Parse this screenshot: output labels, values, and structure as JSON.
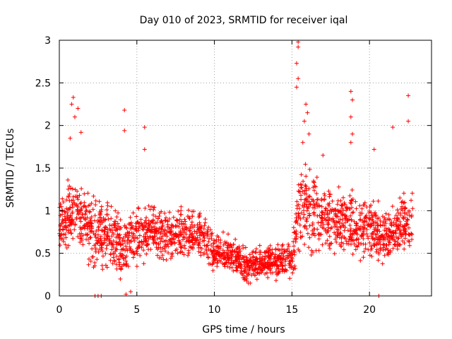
{
  "chart_data": {
    "type": "scatter",
    "title": "Day 010 of 2023, SRMTID for receiver iqal",
    "xlabel": "GPS time / hours",
    "ylabel": "SRMTID / TECUs",
    "xlim": [
      0,
      24
    ],
    "ylim": [
      0,
      3
    ],
    "xticks": [
      0,
      5,
      10,
      15,
      20
    ],
    "yticks": [
      0,
      0.5,
      1,
      1.5,
      2,
      2.5,
      3
    ],
    "grid": true,
    "marker": "+",
    "series": [
      {
        "name": "SRMTID",
        "color": "#ff0000",
        "profile": [
          {
            "t": 0.0,
            "mean": 0.85,
            "spread": 0.45
          },
          {
            "t": 1.0,
            "mean": 1.0,
            "spread": 0.6
          },
          {
            "t": 2.0,
            "mean": 0.75,
            "spread": 0.55
          },
          {
            "t": 3.0,
            "mean": 0.75,
            "spread": 0.55
          },
          {
            "t": 4.0,
            "mean": 0.55,
            "spread": 0.5
          },
          {
            "t": 5.0,
            "mean": 0.7,
            "spread": 0.45
          },
          {
            "t": 6.0,
            "mean": 0.75,
            "spread": 0.4
          },
          {
            "t": 7.0,
            "mean": 0.7,
            "spread": 0.4
          },
          {
            "t": 8.0,
            "mean": 0.7,
            "spread": 0.4
          },
          {
            "t": 9.0,
            "mean": 0.75,
            "spread": 0.4
          },
          {
            "t": 10.0,
            "mean": 0.5,
            "spread": 0.3
          },
          {
            "t": 11.0,
            "mean": 0.5,
            "spread": 0.28
          },
          {
            "t": 12.0,
            "mean": 0.35,
            "spread": 0.25
          },
          {
            "t": 13.0,
            "mean": 0.4,
            "spread": 0.25
          },
          {
            "t": 14.0,
            "mean": 0.4,
            "spread": 0.25
          },
          {
            "t": 15.0,
            "mean": 0.4,
            "spread": 0.3
          },
          {
            "t": 15.5,
            "mean": 1.1,
            "spread": 0.9
          },
          {
            "t": 16.0,
            "mean": 1.0,
            "spread": 0.7
          },
          {
            "t": 17.0,
            "mean": 0.9,
            "spread": 0.5
          },
          {
            "t": 18.0,
            "mean": 0.9,
            "spread": 0.5
          },
          {
            "t": 19.0,
            "mean": 0.85,
            "spread": 0.5
          },
          {
            "t": 20.0,
            "mean": 0.8,
            "spread": 0.45
          },
          {
            "t": 21.0,
            "mean": 0.7,
            "spread": 0.45
          },
          {
            "t": 22.0,
            "mean": 0.8,
            "spread": 0.45
          },
          {
            "t": 22.8,
            "mean": 0.9,
            "spread": 0.5
          }
        ],
        "highlights": [
          [
            0.9,
            2.33
          ],
          [
            0.8,
            2.25
          ],
          [
            1.2,
            2.2
          ],
          [
            1.0,
            2.1
          ],
          [
            1.4,
            1.92
          ],
          [
            0.7,
            1.85
          ],
          [
            4.2,
            2.18
          ],
          [
            4.2,
            1.94
          ],
          [
            5.5,
            1.98
          ],
          [
            5.5,
            1.72
          ],
          [
            15.4,
            2.98
          ],
          [
            15.4,
            2.92
          ],
          [
            15.3,
            2.73
          ],
          [
            15.4,
            2.55
          ],
          [
            15.3,
            2.45
          ],
          [
            15.9,
            2.25
          ],
          [
            16.0,
            2.15
          ],
          [
            15.8,
            2.05
          ],
          [
            16.1,
            1.9
          ],
          [
            15.7,
            1.8
          ],
          [
            18.8,
            2.4
          ],
          [
            18.9,
            2.3
          ],
          [
            18.8,
            2.1
          ],
          [
            18.9,
            1.9
          ],
          [
            18.8,
            1.8
          ],
          [
            22.5,
            2.35
          ],
          [
            22.5,
            2.05
          ],
          [
            21.5,
            1.98
          ],
          [
            20.3,
            1.72
          ],
          [
            17.0,
            1.65
          ],
          [
            2.3,
            0.0
          ],
          [
            2.5,
            0.0
          ],
          [
            2.7,
            0.0
          ],
          [
            20.6,
            0.0
          ],
          [
            4.3,
            0.02
          ],
          [
            4.6,
            0.05
          ]
        ]
      }
    ]
  }
}
